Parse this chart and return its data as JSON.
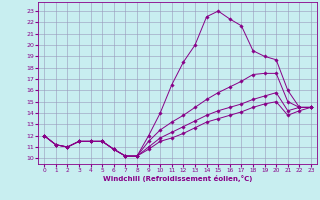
{
  "xlabel": "Windchill (Refroidissement éolien,°C)",
  "x_ticks": [
    0,
    1,
    2,
    3,
    4,
    5,
    6,
    7,
    8,
    9,
    10,
    11,
    12,
    13,
    14,
    15,
    16,
    17,
    18,
    19,
    20,
    21,
    22,
    23
  ],
  "y_ticks": [
    10,
    11,
    12,
    13,
    14,
    15,
    16,
    17,
    18,
    19,
    20,
    21,
    22,
    23
  ],
  "xlim": [
    -0.5,
    23.5
  ],
  "ylim": [
    9.5,
    23.8
  ],
  "background_color": "#c8eef0",
  "line_color": "#880088",
  "grid_color": "#9999bb",
  "lines": [
    {
      "x": [
        0,
        1,
        2,
        3,
        4,
        5,
        6,
        7,
        8,
        9,
        10,
        11,
        12,
        13,
        14,
        15,
        16,
        17,
        18,
        19,
        20,
        21,
        22,
        23
      ],
      "y": [
        12.0,
        11.2,
        11.0,
        11.5,
        11.5,
        11.5,
        10.8,
        10.2,
        10.2,
        12.0,
        14.0,
        16.5,
        18.5,
        20.0,
        22.5,
        23.0,
        22.3,
        21.7,
        19.5,
        19.0,
        18.7,
        16.0,
        14.5,
        14.5
      ]
    },
    {
      "x": [
        0,
        1,
        2,
        3,
        4,
        5,
        6,
        7,
        8,
        9,
        10,
        11,
        12,
        13,
        14,
        15,
        16,
        17,
        18,
        19,
        20,
        21,
        22,
        23
      ],
      "y": [
        12.0,
        11.2,
        11.0,
        11.5,
        11.5,
        11.5,
        10.8,
        10.2,
        10.2,
        11.5,
        12.5,
        13.2,
        13.8,
        14.5,
        15.2,
        15.8,
        16.3,
        16.8,
        17.4,
        17.5,
        17.5,
        15.0,
        14.5,
        14.5
      ]
    },
    {
      "x": [
        0,
        1,
        2,
        3,
        4,
        5,
        6,
        7,
        8,
        9,
        10,
        11,
        12,
        13,
        14,
        15,
        16,
        17,
        18,
        19,
        20,
        21,
        22,
        23
      ],
      "y": [
        12.0,
        11.2,
        11.0,
        11.5,
        11.5,
        11.5,
        10.8,
        10.2,
        10.2,
        11.0,
        11.8,
        12.3,
        12.8,
        13.3,
        13.8,
        14.2,
        14.5,
        14.8,
        15.2,
        15.5,
        15.8,
        14.2,
        14.5,
        14.5
      ]
    },
    {
      "x": [
        0,
        1,
        2,
        3,
        4,
        5,
        6,
        7,
        8,
        9,
        10,
        11,
        12,
        13,
        14,
        15,
        16,
        17,
        18,
        19,
        20,
        21,
        22,
        23
      ],
      "y": [
        12.0,
        11.2,
        11.0,
        11.5,
        11.5,
        11.5,
        10.8,
        10.2,
        10.2,
        10.8,
        11.5,
        11.8,
        12.2,
        12.7,
        13.2,
        13.5,
        13.8,
        14.1,
        14.5,
        14.8,
        15.0,
        13.8,
        14.2,
        14.5
      ]
    }
  ],
  "figsize": [
    3.2,
    2.0
  ],
  "dpi": 100
}
